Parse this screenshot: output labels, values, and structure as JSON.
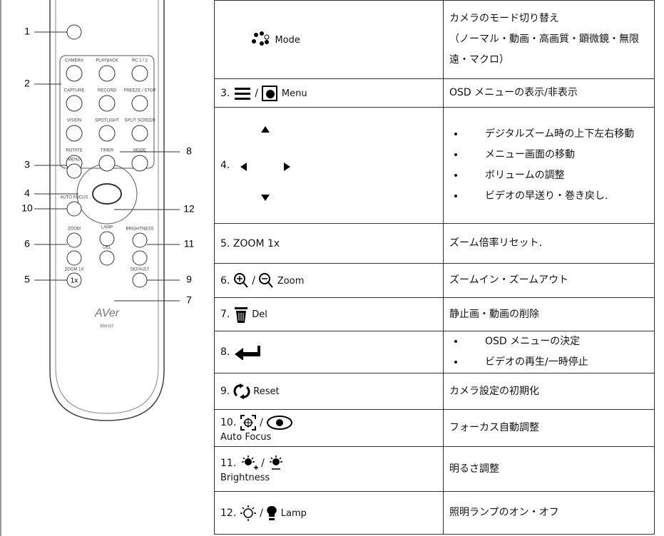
{
  "remote": {
    "callouts": [
      "1",
      "2",
      "3",
      "4",
      "10",
      "6",
      "5",
      "8",
      "12",
      "11",
      "9",
      "7"
    ],
    "buttons": [
      "CAMERA",
      "PLAYBACK",
      "PC 1 / 2",
      "CAPTURE",
      "RECORD",
      "FREEZE / STOP",
      "VISION",
      "SPOTLIGHT",
      "SPLIT SCREEN",
      "ROTATE",
      "TIMER",
      "MODE",
      "MENU",
      "AUTO FOCUS",
      "ZOOM",
      "LAMP",
      "BRIGHTNESS",
      "ZOOM 1X",
      "DEL",
      "DEFAULT"
    ],
    "key_1x": "1x",
    "brand": "AVer",
    "model": "RM-N7"
  },
  "table": {
    "rows": [
      {
        "label": "Mode",
        "description": [
          "カメラのモード切り替え",
          "（ノーマル・動画・高画質・顕微鏡・無限遠・マクロ）"
        ]
      },
      {
        "number": "3.",
        "separator": "/",
        "label": "Menu",
        "description": [
          "OSD メニューの表示/非表示"
        ]
      },
      {
        "number": "4.",
        "bullets": [
          "デジタルズーム時の上下左右移動",
          "メニュー画面の移動",
          "ボリュームの調整",
          "ビデオの早送り・巻き戻し."
        ]
      },
      {
        "number": "5.",
        "label": "ZOOM 1x",
        "description": [
          "ズーム倍率リセット."
        ]
      },
      {
        "number": "6.",
        "separator": "/",
        "label": "Zoom",
        "description": [
          "ズームイン・ズームアウト"
        ]
      },
      {
        "number": "7.",
        "label": "Del",
        "description": [
          "静止画・動画の削除"
        ]
      },
      {
        "number": "8.",
        "bullets": [
          "OSD メニューの決定",
          "ビデオの再生/一時停止"
        ]
      },
      {
        "number": "9.",
        "label": "Reset",
        "description": [
          "カメラ設定の初期化"
        ]
      },
      {
        "number": "10.",
        "separator": "/",
        "label": "Auto Focus",
        "description": [
          "フォーカス自動調整"
        ]
      },
      {
        "number": "11.",
        "separator": "/",
        "label": "Brightness",
        "description": [
          "明るさ調整"
        ]
      },
      {
        "number": "12.",
        "separator": "/",
        "label": "Lamp",
        "description": [
          "照明ランプのオン・オフ"
        ]
      }
    ]
  }
}
